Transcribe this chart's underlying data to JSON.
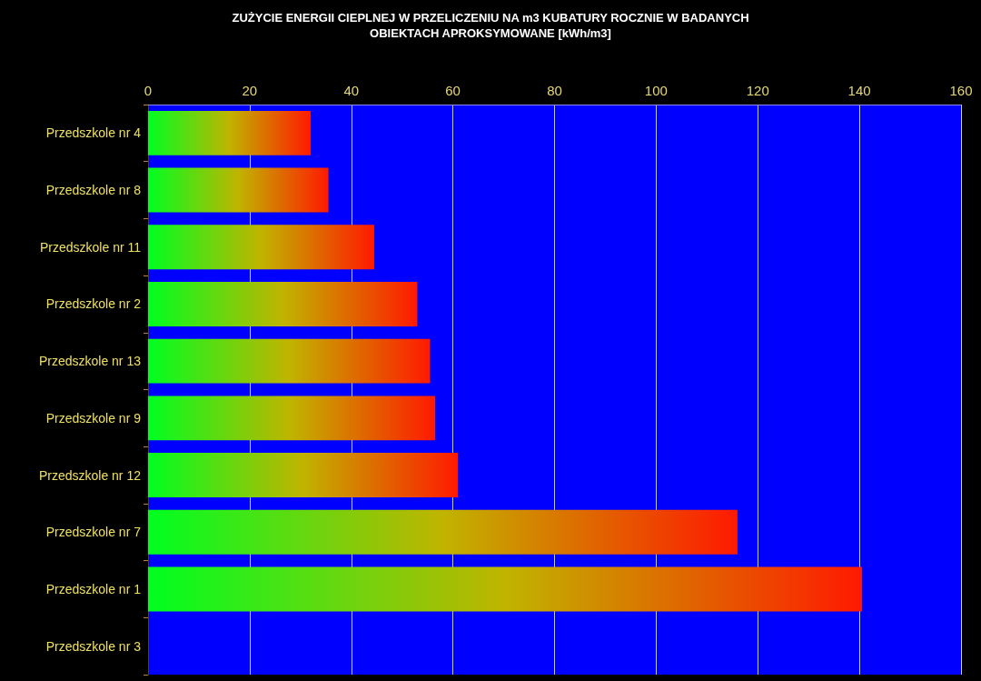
{
  "chart_data": {
    "type": "bar",
    "title": "ZUŻYCIE ENERGII CIEPLNEJ W PRZELICZENIU NA m3 KUBATURY ROCZNIE W BADANYCH\nOBIEKTACH APROKSYMOWANE [kWh/m3]",
    "orientation": "horizontal",
    "categories": [
      "Przedszkole nr 4",
      "Przedszkole nr 8",
      "Przedszkole nr 11",
      "Przedszkole nr 2",
      "Przedszkole nr 13",
      "Przedszkole nr 9",
      "Przedszkole nr 12",
      "Przedszkole nr 7",
      "Przedszkole nr 1",
      "Przedszkole nr 3"
    ],
    "series": [
      {
        "color": "#ff1a00",
        "values": [
          32,
          35.5,
          44.5,
          53,
          55.5,
          56.5,
          61,
          116,
          140.5,
          null
        ]
      }
    ],
    "xlim": [
      0,
      160
    ],
    "xticks": [
      0,
      20,
      40,
      60,
      80,
      100,
      120,
      140,
      160
    ],
    "grid": "x"
  }
}
